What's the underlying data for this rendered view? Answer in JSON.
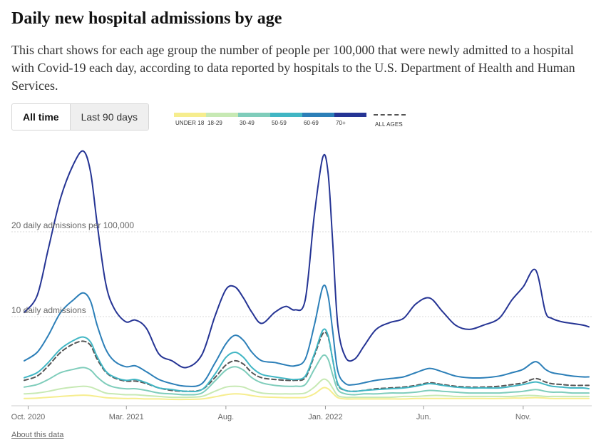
{
  "header": {
    "title": "Daily new hospital admissions by age",
    "description": "This chart shows for each age group the number of people per 100,000 that were newly admitted to a hospital with Covid-19 each day, according to data reported by hospitals to the U.S. Department of Health and Human Services."
  },
  "toggle": {
    "all_time": "All time",
    "last_90": "Last 90 days",
    "selected": "All time"
  },
  "footer": {
    "about": "About this data"
  },
  "chart_data": {
    "type": "line",
    "x": [
      "2020-09-25",
      "2020-10-15",
      "2020-11-01",
      "2020-11-20",
      "2020-12-10",
      "2020-12-25",
      "2021-01-05",
      "2021-01-15",
      "2021-01-28",
      "2021-02-10",
      "2021-02-28",
      "2021-03-15",
      "2021-04-01",
      "2021-04-20",
      "2021-05-10",
      "2021-06-01",
      "2021-06-25",
      "2021-07-15",
      "2021-08-01",
      "2021-08-15",
      "2021-08-28",
      "2021-09-10",
      "2021-09-25",
      "2021-10-15",
      "2021-11-01",
      "2021-11-15",
      "2021-12-01",
      "2021-12-15",
      "2021-12-28",
      "2022-01-05",
      "2022-01-12",
      "2022-01-20",
      "2022-02-01",
      "2022-02-15",
      "2022-03-01",
      "2022-03-20",
      "2022-04-10",
      "2022-05-01",
      "2022-05-20",
      "2022-06-10",
      "2022-06-30",
      "2022-07-20",
      "2022-08-10",
      "2022-09-01",
      "2022-09-25",
      "2022-10-15",
      "2022-11-01",
      "2022-11-20",
      "2022-12-05",
      "2022-12-15",
      "2022-12-30",
      "2023-01-15",
      "2023-02-01",
      "2023-02-10"
    ],
    "series": [
      {
        "name": "70+",
        "color": "#253494",
        "values": [
          10.5,
          12.5,
          18.0,
          24.0,
          28.0,
          29.5,
          27.0,
          21.0,
          14.0,
          11.0,
          9.4,
          9.6,
          8.6,
          5.6,
          4.8,
          4.0,
          5.5,
          10.0,
          13.2,
          13.5,
          12.2,
          10.5,
          9.2,
          10.5,
          11.2,
          10.8,
          12.0,
          22.0,
          28.8,
          27.0,
          19.0,
          9.0,
          5.2,
          5.0,
          6.5,
          8.5,
          9.3,
          9.8,
          11.5,
          12.2,
          10.6,
          9.0,
          8.5,
          9.0,
          9.8,
          12.0,
          13.5,
          15.5,
          10.6,
          9.8,
          9.4,
          9.2,
          9.0,
          8.8
        ]
      },
      {
        "name": "60-69",
        "color": "#2c7fb8",
        "values": [
          4.8,
          5.8,
          7.8,
          10.5,
          12.0,
          12.8,
          11.8,
          9.0,
          6.2,
          4.8,
          4.1,
          4.2,
          3.5,
          2.6,
          2.1,
          1.8,
          2.1,
          4.5,
          6.8,
          7.8,
          7.2,
          5.8,
          4.8,
          4.6,
          4.3,
          4.2,
          5.0,
          9.0,
          13.5,
          12.5,
          8.4,
          3.6,
          2.1,
          2.0,
          2.2,
          2.5,
          2.7,
          2.9,
          3.4,
          3.9,
          3.5,
          3.0,
          2.8,
          2.8,
          3.0,
          3.4,
          3.8,
          4.7,
          3.8,
          3.4,
          3.2,
          3.0,
          2.9,
          2.9
        ]
      },
      {
        "name": "50-59",
        "color": "#41b6c4",
        "values": [
          2.8,
          3.4,
          4.6,
          6.2,
          7.2,
          7.6,
          7.0,
          5.3,
          3.6,
          2.9,
          2.5,
          2.6,
          2.2,
          1.6,
          1.4,
          1.2,
          1.4,
          3.2,
          5.2,
          5.8,
          5.2,
          4.0,
          3.2,
          2.9,
          2.7,
          2.6,
          3.0,
          5.6,
          8.4,
          7.8,
          5.0,
          2.1,
          1.3,
          1.2,
          1.3,
          1.4,
          1.5,
          1.6,
          1.8,
          2.1,
          1.9,
          1.7,
          1.6,
          1.6,
          1.6,
          1.8,
          2.0,
          2.3,
          2.0,
          1.8,
          1.7,
          1.6,
          1.6,
          1.5
        ]
      },
      {
        "name": "30-49",
        "color": "#7fcdbb",
        "values": [
          1.7,
          2.0,
          2.6,
          3.4,
          3.8,
          4.0,
          3.7,
          2.9,
          2.1,
          1.7,
          1.5,
          1.5,
          1.3,
          1.0,
          0.9,
          0.8,
          1.0,
          2.4,
          3.7,
          4.1,
          3.7,
          2.8,
          2.2,
          1.9,
          1.8,
          1.8,
          2.0,
          3.8,
          5.4,
          5.0,
          3.2,
          1.4,
          0.9,
          0.8,
          0.9,
          0.9,
          1.0,
          1.0,
          1.1,
          1.3,
          1.2,
          1.1,
          1.0,
          1.0,
          1.0,
          1.1,
          1.2,
          1.4,
          1.2,
          1.1,
          1.1,
          1.0,
          1.0,
          1.0
        ]
      },
      {
        "name": "18-29",
        "color": "#c7e9b4",
        "values": [
          0.9,
          1.0,
          1.2,
          1.5,
          1.7,
          1.8,
          1.7,
          1.4,
          1.0,
          0.9,
          0.8,
          0.8,
          0.7,
          0.6,
          0.5,
          0.5,
          0.6,
          1.2,
          1.7,
          1.8,
          1.7,
          1.3,
          1.0,
          0.9,
          0.9,
          0.9,
          1.0,
          1.7,
          2.6,
          2.4,
          1.6,
          0.7,
          0.5,
          0.5,
          0.5,
          0.5,
          0.5,
          0.6,
          0.6,
          0.7,
          0.7,
          0.6,
          0.6,
          0.6,
          0.6,
          0.6,
          0.7,
          0.7,
          0.6,
          0.6,
          0.6,
          0.6,
          0.6,
          0.6
        ]
      },
      {
        "name": "UNDER 18",
        "color": "#f6ed8e",
        "values": [
          0.35,
          0.4,
          0.5,
          0.6,
          0.7,
          0.75,
          0.7,
          0.6,
          0.45,
          0.4,
          0.35,
          0.35,
          0.3,
          0.3,
          0.25,
          0.25,
          0.3,
          0.55,
          0.8,
          0.9,
          0.85,
          0.7,
          0.55,
          0.5,
          0.45,
          0.45,
          0.5,
          0.9,
          1.6,
          1.5,
          1.0,
          0.45,
          0.3,
          0.3,
          0.3,
          0.3,
          0.3,
          0.3,
          0.35,
          0.35,
          0.35,
          0.35,
          0.35,
          0.35,
          0.35,
          0.4,
          0.4,
          0.45,
          0.4,
          0.35,
          0.35,
          0.35,
          0.35,
          0.35
        ]
      },
      {
        "name": "ALL AGES",
        "color": "#555555",
        "dashed": true,
        "values": [
          2.5,
          3.0,
          4.2,
          5.8,
          6.8,
          7.1,
          6.6,
          5.0,
          3.5,
          2.8,
          2.4,
          2.4,
          2.1,
          1.6,
          1.3,
          1.2,
          1.4,
          2.8,
          4.3,
          4.8,
          4.4,
          3.4,
          2.8,
          2.6,
          2.5,
          2.5,
          2.8,
          5.4,
          8.0,
          7.6,
          5.0,
          2.0,
          1.3,
          1.2,
          1.3,
          1.5,
          1.6,
          1.7,
          1.9,
          2.2,
          2.0,
          1.8,
          1.7,
          1.7,
          1.8,
          2.0,
          2.2,
          2.7,
          2.3,
          2.1,
          2.0,
          1.9,
          1.9,
          1.9
        ]
      }
    ],
    "legend": [
      "UNDER 18",
      "18-29",
      "30-49",
      "50-59",
      "60-69",
      "70+",
      "ALL AGES"
    ],
    "gridlines": [
      {
        "value": 10,
        "label": "10 daily admissions"
      },
      {
        "value": 20,
        "label": "20 daily admissions per 100,000"
      }
    ],
    "ticks": [
      {
        "date": "2020-10-01",
        "label": "Oct. 2020"
      },
      {
        "date": "2021-03-01",
        "label": "Mar. 2021"
      },
      {
        "date": "2021-08-01",
        "label": "Aug."
      },
      {
        "date": "2022-01-01",
        "label": "Jan. 2022"
      },
      {
        "date": "2022-06-01",
        "label": "Jun."
      },
      {
        "date": "2022-11-01",
        "label": "Nov."
      }
    ],
    "xlim": [
      "2020-09-25",
      "2023-02-10"
    ],
    "ylim": [
      0,
      30
    ]
  }
}
